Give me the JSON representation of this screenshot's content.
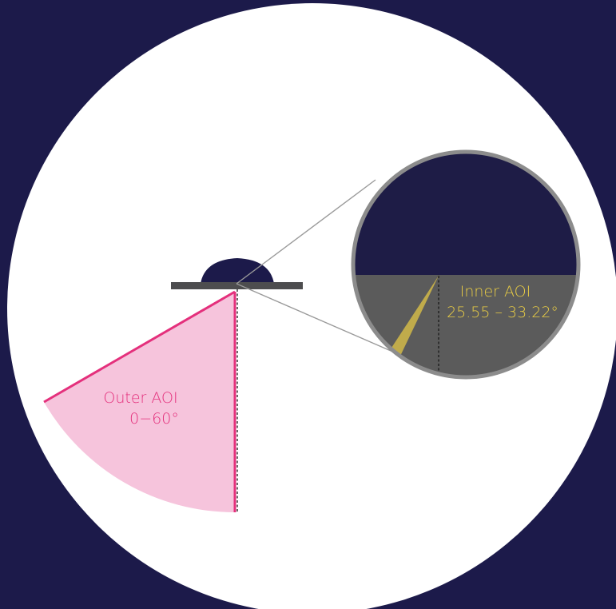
{
  "colors": {
    "background": "#1c1a4a",
    "disc": "#ffffff",
    "droplet": "#1c1a4a",
    "substrate": "#4d4d4f",
    "outer_fill": "#f6c4dc",
    "outer_stroke": "#e4307c",
    "inner_fill": "#c9b24a",
    "inner_text": "#e8cc45",
    "outer_text": "#e4307c",
    "lens_border": "#8c8c8c",
    "lens_upper": "#1e1c46",
    "lens_lower": "#5b5b5b"
  },
  "labels": {
    "outer_aoi_title": "Outer AOI",
    "outer_aoi_range": "0−60°",
    "inner_aoi_title": "Inner AOI",
    "inner_aoi_range": "25.55 – 33.22°"
  },
  "aoi": {
    "outer_min_deg": 0,
    "outer_max_deg": 60,
    "inner_min_deg": 25.55,
    "inner_max_deg": 33.22
  }
}
